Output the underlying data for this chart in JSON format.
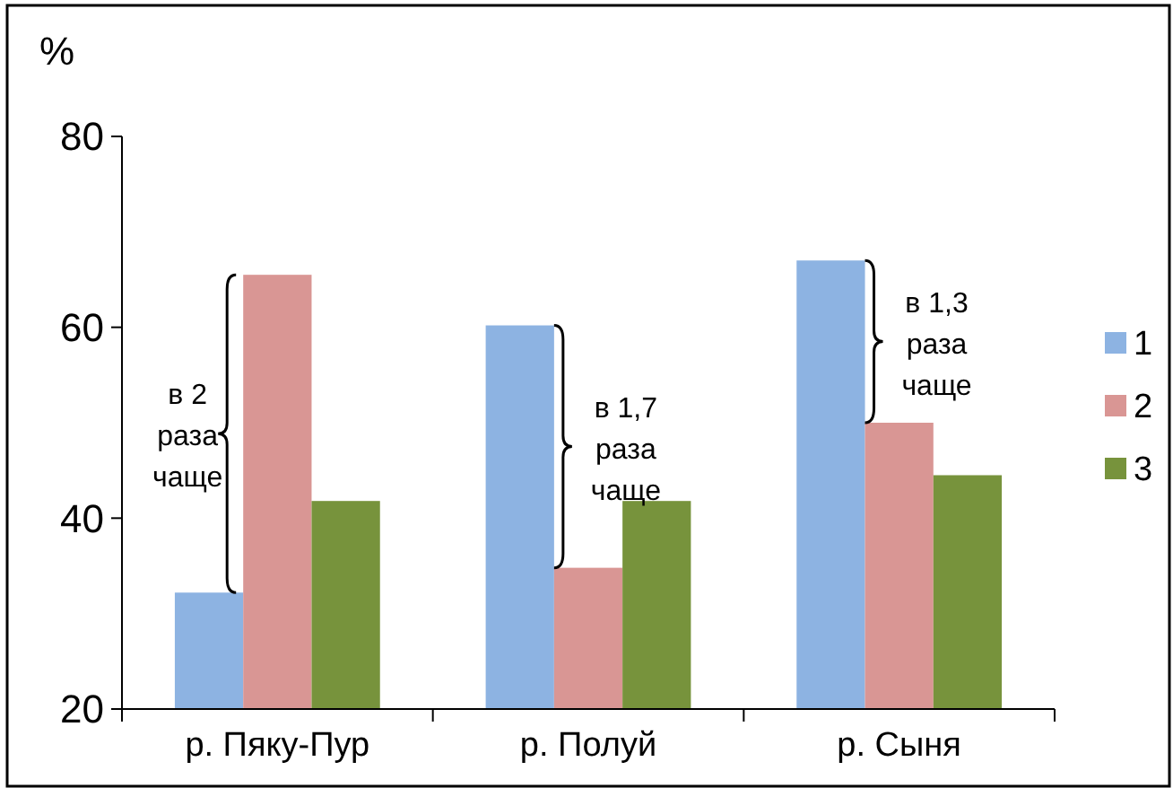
{
  "chart_data": {
    "type": "bar",
    "ylabel": "%",
    "categories": [
      "р. Пяку-Пур",
      "р. Полуй",
      "р. Сыня"
    ],
    "series": [
      {
        "name": "1",
        "color": "#8db3e2",
        "values": [
          32.2,
          60.2,
          67
        ]
      },
      {
        "name": "2",
        "color": "#d99694",
        "values": [
          65.5,
          34.8,
          50
        ]
      },
      {
        "name": "3",
        "color": "#77933c",
        "values": [
          41.8,
          41.8,
          44.5
        ]
      }
    ],
    "ylim": [
      20,
      80
    ],
    "yticks": [
      20,
      40,
      60,
      80
    ],
    "grid": false,
    "legend": "right",
    "annotations": [
      "в 2\nраза\nчаще",
      "в 1,7\nраза\nчаще",
      "в 1,3\nраза\nчаще"
    ]
  }
}
